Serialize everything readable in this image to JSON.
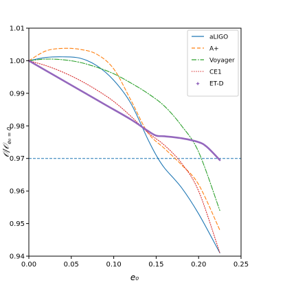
{
  "chart_data": {
    "type": "line",
    "xlabel": "e₀",
    "ylabel": "𝒪/𝒪",
    "ylabel_sub": "e₀ = 0",
    "xlim": [
      0.0,
      0.25
    ],
    "ylim": [
      0.94,
      1.01
    ],
    "x_ticks": [
      "0.00",
      "0.05",
      "0.10",
      "0.15",
      "0.20",
      "0.25"
    ],
    "y_ticks": [
      "0.94",
      "0.95",
      "0.96",
      "0.97",
      "0.98",
      "0.99",
      "1.00",
      "1.01"
    ],
    "grid": false,
    "legend_position": "top-right",
    "threshold": {
      "y": 0.97,
      "color": "#1f77b4",
      "style": "dashed"
    },
    "series": [
      {
        "name": "aLIGO",
        "color": "#1f77b4",
        "style": "solid",
        "x": [
          0.0,
          0.02,
          0.04,
          0.06,
          0.08,
          0.1,
          0.12,
          0.14,
          0.15,
          0.16,
          0.18,
          0.2,
          0.225
        ],
        "y": [
          1.0,
          1.001,
          1.0012,
          1.0008,
          0.9985,
          0.994,
          0.987,
          0.976,
          0.971,
          0.967,
          0.961,
          0.953,
          0.941
        ]
      },
      {
        "name": "A+",
        "color": "#ff7f0e",
        "style": "dashed",
        "x": [
          0.0,
          0.02,
          0.04,
          0.06,
          0.08,
          0.1,
          0.12,
          0.14,
          0.16,
          0.18,
          0.2,
          0.225
        ],
        "y": [
          1.0,
          1.003,
          1.0038,
          1.0035,
          1.002,
          0.9975,
          0.988,
          0.978,
          0.973,
          0.968,
          0.962,
          0.948
        ]
      },
      {
        "name": "Voyager",
        "color": "#2ca02c",
        "style": "dashdot",
        "x": [
          0.0,
          0.02,
          0.04,
          0.06,
          0.08,
          0.1,
          0.12,
          0.14,
          0.16,
          0.18,
          0.2,
          0.225
        ],
        "y": [
          1.0,
          1.0005,
          1.0003,
          0.9995,
          0.998,
          0.996,
          0.9932,
          0.99,
          0.986,
          0.98,
          0.972,
          0.954
        ]
      },
      {
        "name": "CE1",
        "color": "#d62728",
        "style": "dotted",
        "x": [
          0.0,
          0.02,
          0.04,
          0.06,
          0.08,
          0.1,
          0.12,
          0.14,
          0.16,
          0.18,
          0.2,
          0.225
        ],
        "y": [
          1.0,
          0.9985,
          0.9965,
          0.994,
          0.991,
          0.9875,
          0.983,
          0.978,
          0.974,
          0.9685,
          0.96,
          0.941
        ]
      },
      {
        "name": "ET-D",
        "color": "#9467bd",
        "style": "thick",
        "x": [
          0.0,
          0.03,
          0.06,
          0.09,
          0.12,
          0.14,
          0.15,
          0.16,
          0.18,
          0.2,
          0.21,
          0.225
        ],
        "y": [
          1.0,
          0.9955,
          0.991,
          0.9865,
          0.982,
          0.9785,
          0.977,
          0.9768,
          0.9762,
          0.975,
          0.9735,
          0.9695
        ]
      }
    ]
  }
}
